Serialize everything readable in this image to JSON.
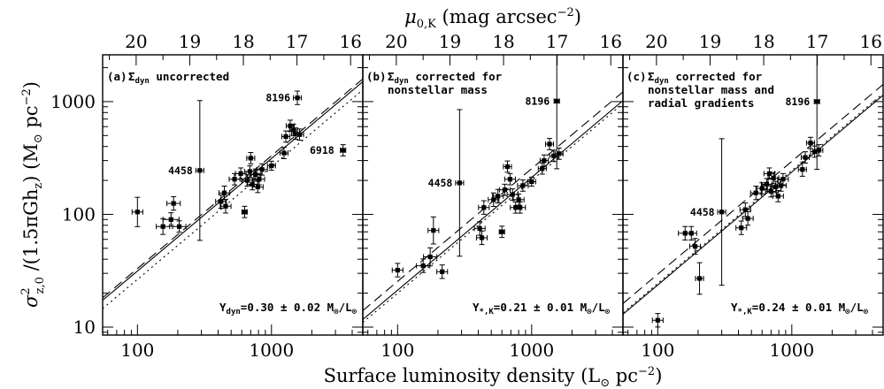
{
  "chart_data": {
    "type": "scatter",
    "xlabel": "Surface luminosity density (L⊙ pc⁻²)",
    "ylabel": "σ²z,0 /(1.5πGhz) (M⊙ pc⁻²)",
    "top_axis_label": "μ0,K (mag arcsec⁻²)",
    "x_scale": "log",
    "y_scale": "log",
    "xlim": [
      55,
      4800
    ],
    "ylim": [
      8.5,
      2600
    ],
    "x_ticks": [
      100,
      1000
    ],
    "x_tick_labels": [
      "100",
      "1000"
    ],
    "y_ticks": [
      10,
      100,
      1000
    ],
    "y_tick_labels": [
      "10",
      "100",
      "1000"
    ],
    "top_ticks": [
      20,
      19,
      18,
      17,
      16
    ],
    "top_tick_labels": [
      "20",
      "19",
      "18",
      "17",
      "16"
    ],
    "panels": [
      {
        "label": "(a)",
        "description": "Σdyn uncorrected",
        "annotation": "Υdyn=0.30 ± 0.02 M⊙/L⊙",
        "lines": [
          {
            "style": "solid",
            "points": [
              [
                55,
                17.3
              ],
              [
                4800,
                1500
              ]
            ]
          },
          {
            "style": "dashed",
            "points": [
              [
                55,
                18.2
              ],
              [
                4800,
                1590
              ]
            ]
          },
          {
            "style": "dotted",
            "points": [
              [
                55,
                14.6
              ],
              [
                4800,
                1270
              ]
            ]
          }
        ],
        "points": [
          {
            "x": 100,
            "y": 105,
            "xerr": 0.04,
            "yerr": 0.13
          },
          {
            "x": 155,
            "y": 78,
            "xerr": 0.05,
            "yerr": 0.07
          },
          {
            "x": 178,
            "y": 90,
            "xerr": 0.06,
            "yerr": 0.06
          },
          {
            "x": 186,
            "y": 125,
            "xerr": 0.05,
            "yerr": 0.06
          },
          {
            "x": 205,
            "y": 78,
            "xerr": 0.05,
            "yerr": 0.05
          },
          {
            "x": 292,
            "y": 245,
            "xerr": 0.03,
            "yerr": 0.62,
            "label": "4458"
          },
          {
            "x": 420,
            "y": 130,
            "xerr": 0.04,
            "yerr": 0.06
          },
          {
            "x": 445,
            "y": 155,
            "xerr": 0.04,
            "yerr": 0.06
          },
          {
            "x": 455,
            "y": 118,
            "xerr": 0.04,
            "yerr": 0.06
          },
          {
            "x": 530,
            "y": 205,
            "xerr": 0.04,
            "yerr": 0.05
          },
          {
            "x": 590,
            "y": 230,
            "xerr": 0.04,
            "yerr": 0.05
          },
          {
            "x": 630,
            "y": 105,
            "xerr": 0.02,
            "yerr": 0.05
          },
          {
            "x": 660,
            "y": 200,
            "xerr": 0.04,
            "yerr": 0.05
          },
          {
            "x": 690,
            "y": 240,
            "xerr": 0.04,
            "yerr": 0.05
          },
          {
            "x": 700,
            "y": 315,
            "xerr": 0.03,
            "yerr": 0.05
          },
          {
            "x": 720,
            "y": 185,
            "xerr": 0.04,
            "yerr": 0.05
          },
          {
            "x": 760,
            "y": 225,
            "xerr": 0.04,
            "yerr": 0.05
          },
          {
            "x": 790,
            "y": 175,
            "xerr": 0.04,
            "yerr": 0.05
          },
          {
            "x": 810,
            "y": 205,
            "xerr": 0.04,
            "yerr": 0.05
          },
          {
            "x": 850,
            "y": 250,
            "xerr": 0.04,
            "yerr": 0.05
          },
          {
            "x": 1000,
            "y": 270,
            "xerr": 0.03,
            "yerr": 0.04
          },
          {
            "x": 1240,
            "y": 350,
            "xerr": 0.03,
            "yerr": 0.05
          },
          {
            "x": 1280,
            "y": 490,
            "xerr": 0.03,
            "yerr": 0.05
          },
          {
            "x": 1380,
            "y": 610,
            "xerr": 0.03,
            "yerr": 0.05
          },
          {
            "x": 1460,
            "y": 560,
            "xerr": 0.03,
            "yerr": 0.05
          },
          {
            "x": 1510,
            "y": 520,
            "xerr": 0.03,
            "yerr": 0.05
          },
          {
            "x": 1560,
            "y": 1080,
            "xerr": 0.03,
            "yerr": 0.06,
            "label": "8196"
          },
          {
            "x": 1620,
            "y": 510,
            "xerr": 0.03,
            "yerr": 0.05
          },
          {
            "x": 3420,
            "y": 370,
            "xerr": 0.02,
            "yerr": 0.05,
            "label": "6918"
          }
        ]
      },
      {
        "label": "(b)",
        "description": "Σdyn corrected for nonstellar mass",
        "annotation": "Υ*,K=0.21 ± 0.01 M⊙/L⊙",
        "lines": [
          {
            "style": "solid",
            "points": [
              [
                55,
                11.7
              ],
              [
                4800,
                1020
              ]
            ]
          },
          {
            "style": "dashed",
            "points": [
              [
                55,
                14.0
              ],
              [
                4800,
                1220
              ]
            ]
          },
          {
            "style": "dotted",
            "points": [
              [
                55,
                11.0
              ],
              [
                4800,
                960
              ]
            ]
          }
        ],
        "points": [
          {
            "x": 100,
            "y": 32,
            "xerr": 0.04,
            "yerr": 0.06
          },
          {
            "x": 155,
            "y": 35,
            "xerr": 0.05,
            "yerr": 0.06
          },
          {
            "x": 175,
            "y": 42,
            "xerr": 0.05,
            "yerr": 0.08
          },
          {
            "x": 185,
            "y": 72,
            "xerr": 0.04,
            "yerr": 0.12
          },
          {
            "x": 215,
            "y": 31,
            "xerr": 0.04,
            "yerr": 0.06
          },
          {
            "x": 290,
            "y": 190,
            "xerr": 0.03,
            "yerr": 0.65,
            "label": "4458"
          },
          {
            "x": 410,
            "y": 75,
            "xerr": 0.04,
            "yerr": 0.06
          },
          {
            "x": 425,
            "y": 62,
            "xerr": 0.04,
            "yerr": 0.06
          },
          {
            "x": 440,
            "y": 115,
            "xerr": 0.04,
            "yerr": 0.06
          },
          {
            "x": 520,
            "y": 135,
            "xerr": 0.04,
            "yerr": 0.06
          },
          {
            "x": 560,
            "y": 145,
            "xerr": 0.04,
            "yerr": 0.06
          },
          {
            "x": 600,
            "y": 70,
            "xerr": 0.02,
            "yerr": 0.05
          },
          {
            "x": 630,
            "y": 165,
            "xerr": 0.04,
            "yerr": 0.05
          },
          {
            "x": 660,
            "y": 265,
            "xerr": 0.03,
            "yerr": 0.05
          },
          {
            "x": 690,
            "y": 205,
            "xerr": 0.04,
            "yerr": 0.05
          },
          {
            "x": 720,
            "y": 150,
            "xerr": 0.04,
            "yerr": 0.05
          },
          {
            "x": 760,
            "y": 115,
            "xerr": 0.04,
            "yerr": 0.05
          },
          {
            "x": 800,
            "y": 135,
            "xerr": 0.04,
            "yerr": 0.05
          },
          {
            "x": 820,
            "y": 115,
            "xerr": 0.04,
            "yerr": 0.05
          },
          {
            "x": 860,
            "y": 180,
            "xerr": 0.04,
            "yerr": 0.05
          },
          {
            "x": 1000,
            "y": 195,
            "xerr": 0.03,
            "yerr": 0.04
          },
          {
            "x": 1200,
            "y": 255,
            "xerr": 0.03,
            "yerr": 0.05
          },
          {
            "x": 1240,
            "y": 300,
            "xerr": 0.03,
            "yerr": 0.05
          },
          {
            "x": 1360,
            "y": 420,
            "xerr": 0.03,
            "yerr": 0.05
          },
          {
            "x": 1460,
            "y": 330,
            "xerr": 0.03,
            "yerr": 0.05
          },
          {
            "x": 1540,
            "y": 1010,
            "xerr": 0.02,
            "yerr": 0.6,
            "label": "8196"
          },
          {
            "x": 1600,
            "y": 345,
            "xerr": 0.03,
            "yerr": 0.05
          }
        ]
      },
      {
        "label": "(c)",
        "description": "Σdyn corrected for nonstellar mass and radial gradients",
        "annotation": "Υ*,K=0.24 ± 0.01 M⊙/L⊙",
        "lines": [
          {
            "style": "solid",
            "points": [
              [
                55,
                13.0
              ],
              [
                4800,
                1140
              ]
            ]
          },
          {
            "style": "dashed",
            "points": [
              [
                55,
                16.2
              ],
              [
                4800,
                1420
              ]
            ]
          },
          {
            "style": "dotted",
            "points": [
              [
                55,
                13.4
              ],
              [
                4800,
                1180
              ]
            ]
          }
        ],
        "points": [
          {
            "x": 100,
            "y": 11.5,
            "xerr": 0.04,
            "yerr": 0.06
          },
          {
            "x": 160,
            "y": 68,
            "xerr": 0.05,
            "yerr": 0.06
          },
          {
            "x": 178,
            "y": 68,
            "xerr": 0.04,
            "yerr": 0.06
          },
          {
            "x": 190,
            "y": 52,
            "xerr": 0.04,
            "yerr": 0.07
          },
          {
            "x": 205,
            "y": 27,
            "xerr": 0.03,
            "yerr": 0.14
          },
          {
            "x": 300,
            "y": 105,
            "xerr": 0.03,
            "yerr": 0.65,
            "label": "4458"
          },
          {
            "x": 420,
            "y": 76,
            "xerr": 0.04,
            "yerr": 0.06
          },
          {
            "x": 450,
            "y": 110,
            "xerr": 0.04,
            "yerr": 0.06
          },
          {
            "x": 470,
            "y": 92,
            "xerr": 0.04,
            "yerr": 0.06
          },
          {
            "x": 540,
            "y": 155,
            "xerr": 0.04,
            "yerr": 0.06
          },
          {
            "x": 600,
            "y": 170,
            "xerr": 0.04,
            "yerr": 0.05
          },
          {
            "x": 650,
            "y": 185,
            "xerr": 0.04,
            "yerr": 0.05
          },
          {
            "x": 680,
            "y": 230,
            "xerr": 0.04,
            "yerr": 0.05
          },
          {
            "x": 700,
            "y": 160,
            "xerr": 0.04,
            "yerr": 0.05
          },
          {
            "x": 730,
            "y": 210,
            "xerr": 0.04,
            "yerr": 0.05
          },
          {
            "x": 760,
            "y": 175,
            "xerr": 0.04,
            "yerr": 0.05
          },
          {
            "x": 790,
            "y": 145,
            "xerr": 0.04,
            "yerr": 0.05
          },
          {
            "x": 830,
            "y": 180,
            "xerr": 0.04,
            "yerr": 0.05
          },
          {
            "x": 860,
            "y": 205,
            "xerr": 0.04,
            "yerr": 0.05
          },
          {
            "x": 1200,
            "y": 250,
            "xerr": 0.03,
            "yerr": 0.06
          },
          {
            "x": 1260,
            "y": 320,
            "xerr": 0.03,
            "yerr": 0.05
          },
          {
            "x": 1380,
            "y": 430,
            "xerr": 0.03,
            "yerr": 0.05
          },
          {
            "x": 1480,
            "y": 360,
            "xerr": 0.03,
            "yerr": 0.05
          },
          {
            "x": 1540,
            "y": 1000,
            "xerr": 0.02,
            "yerr": 0.6,
            "label": "8196"
          },
          {
            "x": 1590,
            "y": 370,
            "xerr": 0.03,
            "yerr": 0.05
          }
        ]
      }
    ]
  }
}
